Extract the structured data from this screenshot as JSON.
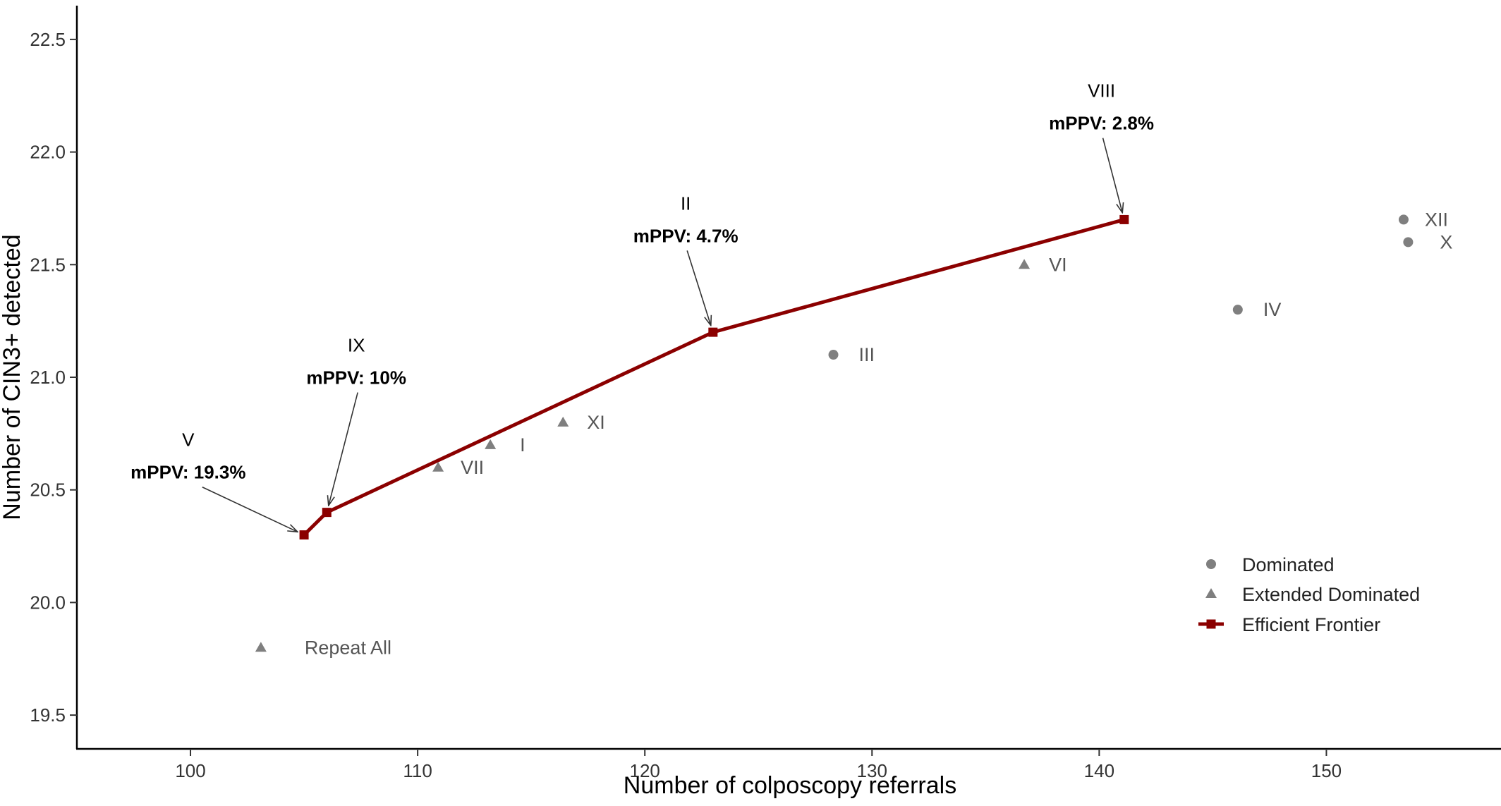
{
  "chart_data": {
    "type": "scatter",
    "xlabel": "Number of colposcopy referrals",
    "ylabel": "Number of CIN3+ detected",
    "xlim": [
      95,
      157.5
    ],
    "ylim": [
      19.35,
      22.65
    ],
    "xticks": [
      "100",
      "110",
      "120",
      "130",
      "140",
      "150"
    ],
    "xtick_values": [
      100,
      110,
      120,
      130,
      140,
      150
    ],
    "yticks": [
      "19.5",
      "20.0",
      "20.5",
      "21.0",
      "21.5",
      "22.0",
      "22.5"
    ],
    "ytick_values": [
      19.5,
      20.0,
      20.5,
      21.0,
      21.5,
      22.0,
      22.5
    ],
    "grid": false,
    "legend_position": "bottom-right",
    "colors": {
      "frontier": "#8b0000",
      "other": "#7f7f7f"
    },
    "series": [
      {
        "name": "Dominated",
        "marker": "circle",
        "points": [
          {
            "label": "III",
            "x": 128.3,
            "y": 21.1
          },
          {
            "label": "IV",
            "x": 146.1,
            "y": 21.3
          },
          {
            "label": "XII",
            "x": 153.4,
            "y": 21.7
          },
          {
            "label": "X",
            "x": 153.6,
            "y": 21.6
          }
        ]
      },
      {
        "name": "Extended Dominated",
        "marker": "triangle",
        "points": [
          {
            "label": "Repeat All",
            "x": 103.1,
            "y": 19.8
          },
          {
            "label": "VII",
            "x": 110.9,
            "y": 20.6
          },
          {
            "label": "I",
            "x": 113.2,
            "y": 20.7
          },
          {
            "label": "XI",
            "x": 116.4,
            "y": 20.8
          },
          {
            "label": "VI",
            "x": 136.7,
            "y": 21.5
          }
        ]
      },
      {
        "name": "Efficient Frontier",
        "marker": "square-line",
        "points": [
          {
            "label": "V",
            "x": 105.0,
            "y": 20.3
          },
          {
            "label": "IX",
            "x": 106.0,
            "y": 20.4
          },
          {
            "label": "II",
            "x": 123.0,
            "y": 21.2
          },
          {
            "label": "VIII",
            "x": 141.1,
            "y": 21.7
          }
        ]
      }
    ],
    "annotations": [
      {
        "name": "V",
        "value": "mPPV: 19.3%",
        "target_label": "V",
        "text_x": 99.9,
        "text_y": 20.55
      },
      {
        "name": "IX",
        "value": "mPPV: 10%",
        "target_label": "IX",
        "text_x": 107.3,
        "text_y": 20.97
      },
      {
        "name": "II",
        "value": "mPPV: 4.7%",
        "target_label": "II",
        "text_x": 121.8,
        "text_y": 21.6
      },
      {
        "name": "VIII",
        "value": "mPPV: 2.8%",
        "target_label": "VIII",
        "text_x": 140.1,
        "text_y": 22.1
      }
    ]
  }
}
